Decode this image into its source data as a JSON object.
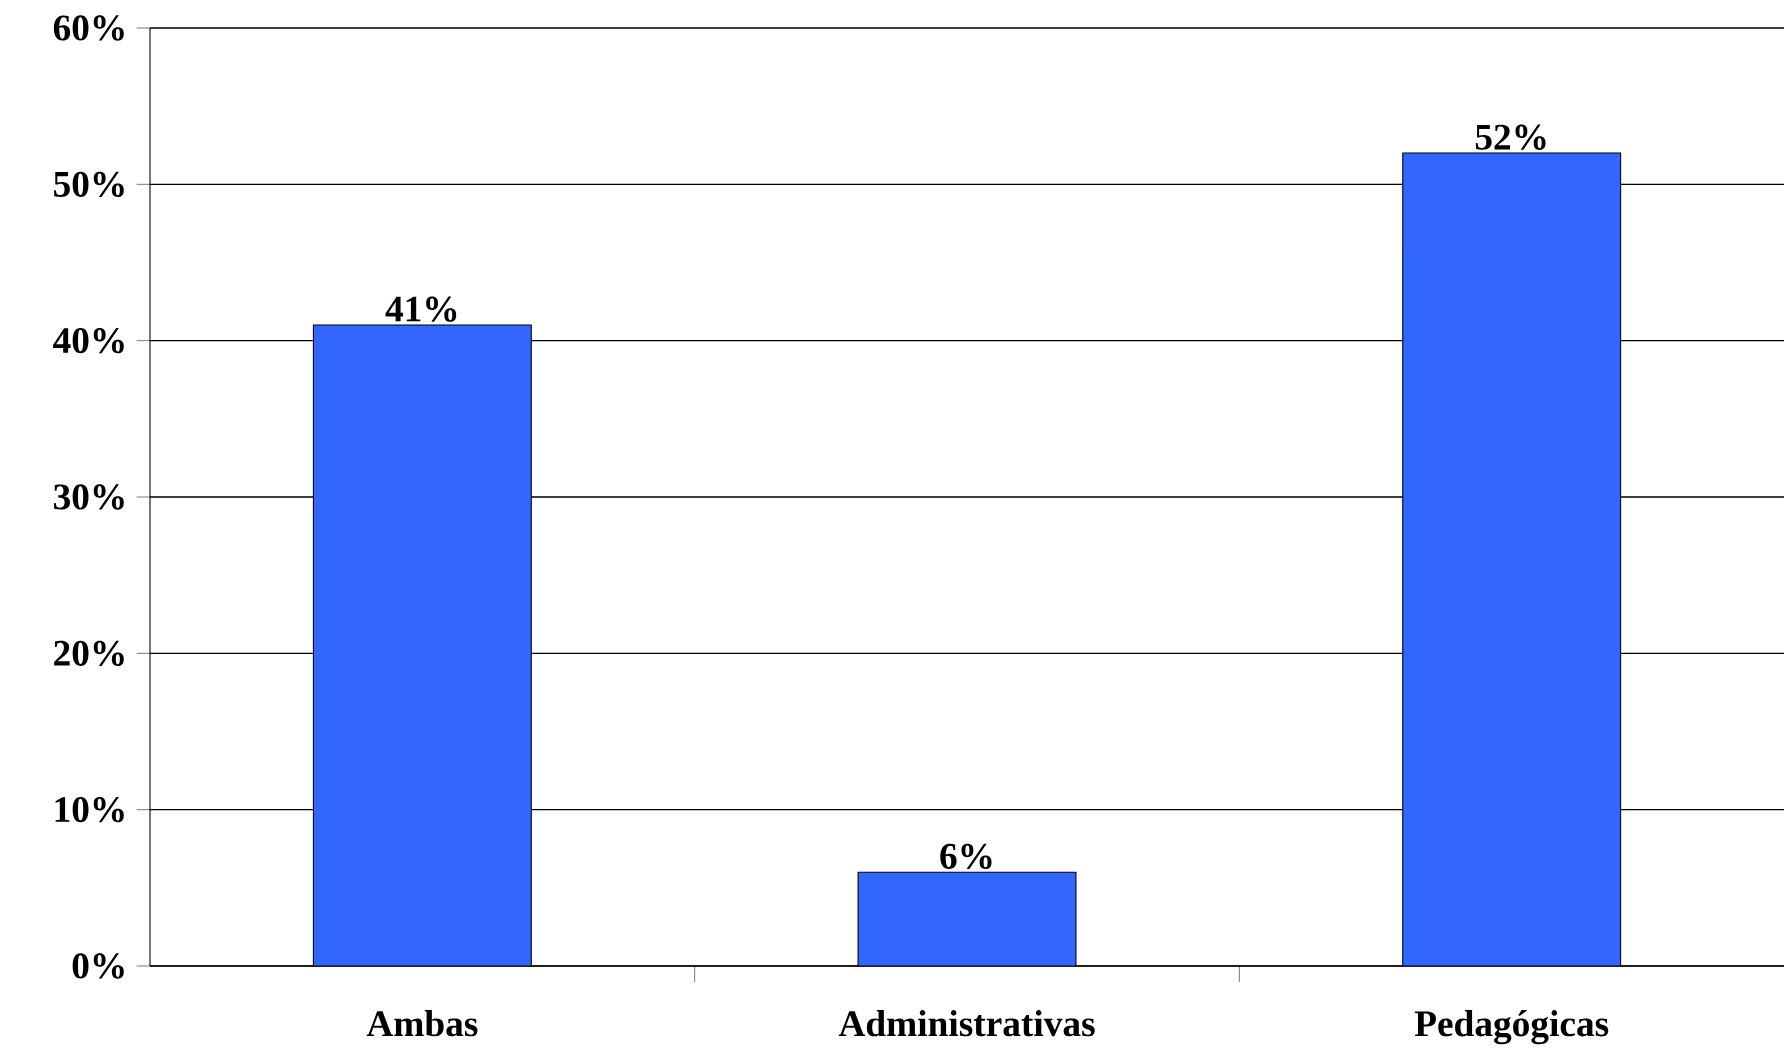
{
  "chart_data": {
    "type": "bar",
    "categories": [
      "Ambas",
      "Administrativas",
      "Pedagógicas"
    ],
    "values": [
      41,
      6,
      52
    ],
    "value_labels": [
      "41%",
      "6%",
      "52%"
    ],
    "color": "#3366ff",
    "ylim": [
      0,
      60
    ],
    "yticks": [
      {
        "value": 0,
        "label": "0%"
      },
      {
        "value": 10,
        "label": "10%"
      },
      {
        "value": 20,
        "label": "20%"
      },
      {
        "value": 30,
        "label": "30%"
      },
      {
        "value": 40,
        "label": "40%"
      },
      {
        "value": 50,
        "label": "50%"
      },
      {
        "value": 60,
        "label": "60%"
      }
    ],
    "grid": "y"
  }
}
